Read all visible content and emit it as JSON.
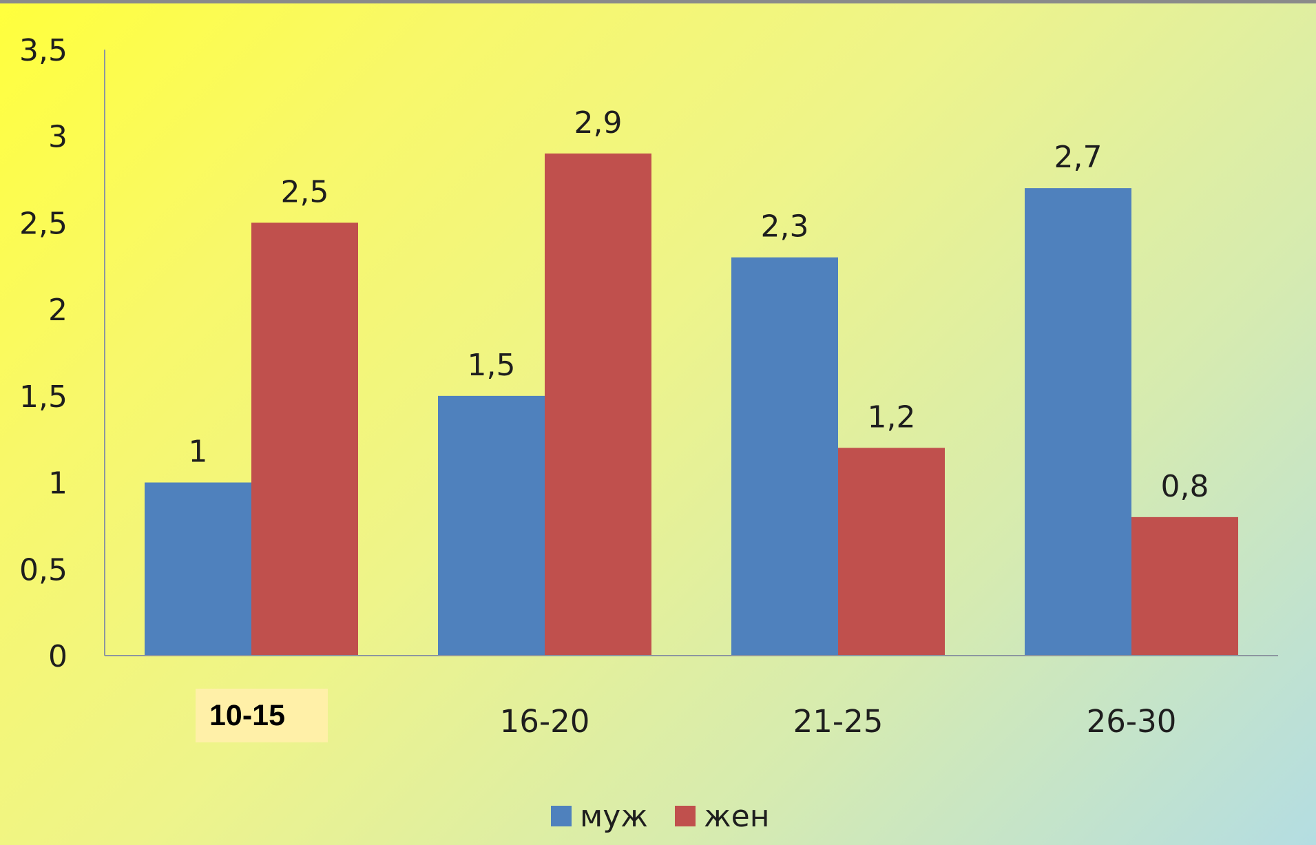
{
  "chart_data": {
    "type": "bar",
    "title": "",
    "xlabel": "",
    "ylabel": "",
    "categories": [
      "10-15",
      "16-20",
      "21-25",
      "26-30"
    ],
    "highlighted_category": "10-15",
    "series": [
      {
        "name": "муж",
        "color": "#4f81bd",
        "values": [
          1,
          1.5,
          2.3,
          2.7
        ],
        "labels": [
          "1",
          "1,5",
          "2,3",
          "2,7"
        ]
      },
      {
        "name": "жен",
        "color": "#c0504d",
        "values": [
          2.5,
          2.9,
          1.2,
          0.8
        ],
        "labels": [
          "2,5",
          "2,9",
          "1,2",
          "0,8"
        ]
      }
    ],
    "ylim": [
      0,
      3.5
    ],
    "yticks": [
      0,
      0.5,
      1,
      1.5,
      2,
      2.5,
      3,
      3.5
    ],
    "ytick_labels": [
      "0",
      "0,5",
      "1",
      "1,5",
      "2",
      "2,5",
      "3",
      "3,5"
    ],
    "grid": false,
    "legend_position": "bottom-center",
    "highlight_box_color": "#fff0a8",
    "axis_color": "#8c96a0"
  }
}
